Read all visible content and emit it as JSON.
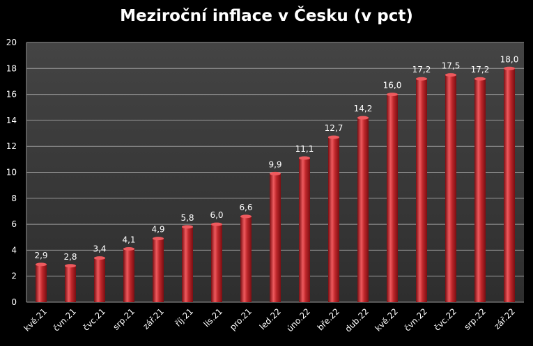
{
  "chart_data": {
    "type": "bar",
    "title": "Meziroční inflace v Česku (v pct)",
    "xlabel": "",
    "ylabel": "",
    "ylim": [
      0,
      20
    ],
    "yticks": [
      0,
      2,
      4,
      6,
      8,
      10,
      12,
      14,
      16,
      18,
      20
    ],
    "grid": true,
    "categories": [
      "kvě.21",
      "čvn.21",
      "čvc.21",
      "srp.21",
      "zář.21",
      "říj.21",
      "lis.21",
      "pro.21",
      "led.22",
      "úno.22",
      "bře.22",
      "dub.22",
      "kvě.22",
      "čvn.22",
      "čvc.22",
      "srp.22",
      "zář.22"
    ],
    "values": [
      2.9,
      2.8,
      3.4,
      4.1,
      4.9,
      5.8,
      6.0,
      6.6,
      9.9,
      11.1,
      12.7,
      14.2,
      16.0,
      17.2,
      17.5,
      17.2,
      18.0
    ],
    "data_labels": [
      "2,9",
      "2,8",
      "3,4",
      "4,1",
      "4,9",
      "5,8",
      "6,0",
      "6,6",
      "9,9",
      "11,1",
      "12,7",
      "14,2",
      "16,0",
      "17,2",
      "17,5",
      "17,2",
      "18,0"
    ],
    "colors": {
      "background": "#000000",
      "plot_background": "#3a3a3a",
      "gridline": "#9a9a9a",
      "bar": "#c0282c",
      "bar_highlight": "#ee5a5e",
      "bar_shadow": "#7a0e12",
      "text": "#ffffff"
    }
  }
}
